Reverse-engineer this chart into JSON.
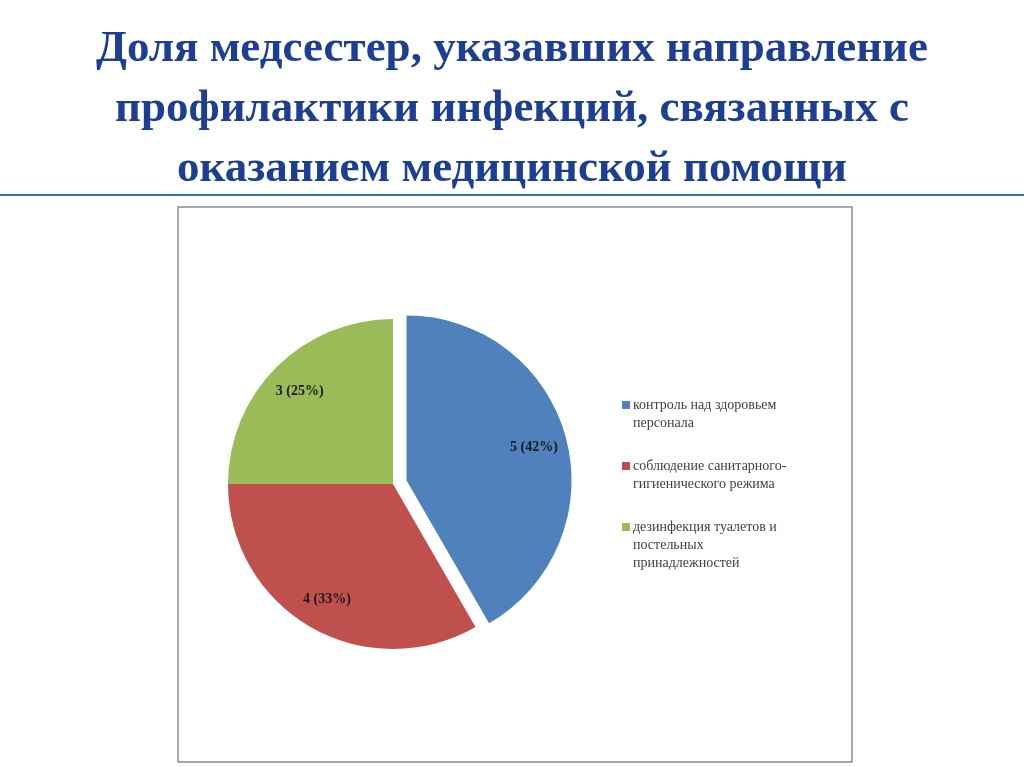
{
  "chart_data": {
    "type": "pie",
    "title": "Доля медсестер, указавших направление профилактики инфекций, связанных с оказанием медицинской помощи",
    "categories": [
      "контроль над здоровьем персонала",
      "соблюдение санитарного-гигиенического режима",
      "дезинфекция туалетов и постельных принадлежностей"
    ],
    "values": [
      5,
      4,
      3
    ],
    "colors": [
      "#4f81bd",
      "#c0504d",
      "#9bbb59"
    ],
    "value_labels": [
      "5 (42%)",
      "4 (33%)",
      "3 (25%)"
    ],
    "legend": "right"
  }
}
